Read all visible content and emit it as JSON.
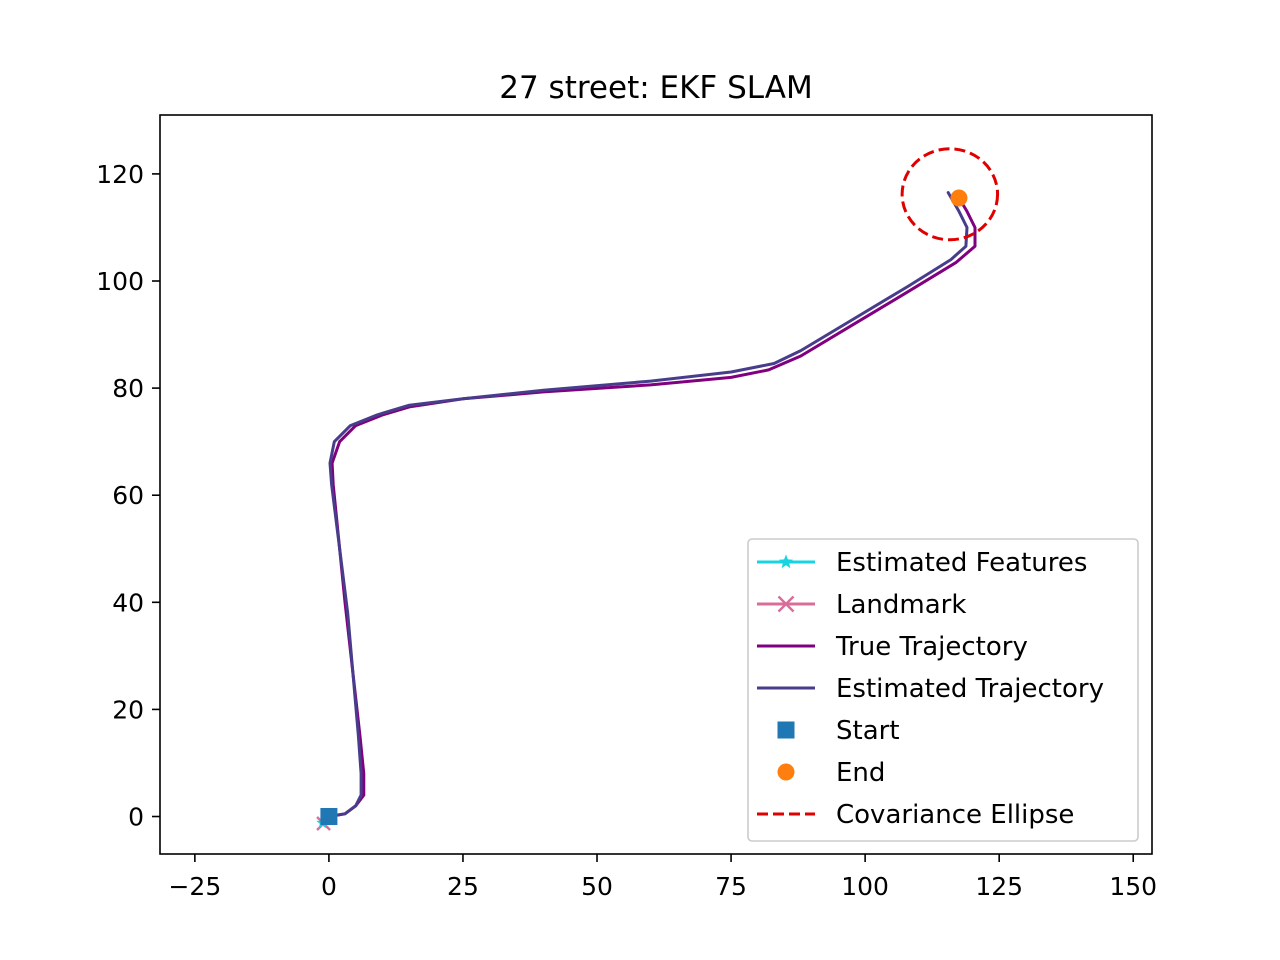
{
  "chart_data": {
    "type": "line",
    "title": "27 street: EKF SLAM",
    "xlabel": "",
    "ylabel": "",
    "xlim": [
      -31.5,
      153.5
    ],
    "ylim": [
      -7,
      131
    ],
    "xticks": [
      -25,
      0,
      25,
      50,
      75,
      100,
      125,
      150
    ],
    "xtick_labels": [
      "−25",
      "0",
      "25",
      "50",
      "75",
      "100",
      "125",
      "150"
    ],
    "yticks": [
      0,
      20,
      40,
      60,
      80,
      100,
      120
    ],
    "ytick_labels": [
      "0",
      "20",
      "40",
      "60",
      "80",
      "100",
      "120"
    ],
    "grid": false,
    "legend_position": "lower-right",
    "series": [
      {
        "name": "Estimated Features",
        "kind": "line-marker",
        "color": "#17d4e0",
        "marker": "star",
        "x": [
          -1.2
        ],
        "y": [
          -1.2
        ]
      },
      {
        "name": "Landmark",
        "kind": "line-marker",
        "color": "#d96d9a",
        "marker": "x",
        "x": [
          -1.0
        ],
        "y": [
          -1.3
        ]
      },
      {
        "name": "True Trajectory",
        "kind": "line",
        "color": "#800080",
        "x": [
          0,
          3,
          5,
          6.5,
          6.5,
          5.8,
          3.0,
          0.8,
          0.6,
          2,
          5,
          10,
          15,
          25,
          40,
          60,
          75,
          82,
          88,
          98,
          108,
          117,
          120.5,
          120.5,
          119,
          117.5
        ],
        "y": [
          0,
          0.5,
          2,
          4,
          8,
          15,
          40,
          62,
          66,
          70,
          73,
          75,
          76.5,
          78,
          79.3,
          80.6,
          82,
          83.4,
          86,
          92,
          98,
          103.5,
          106.5,
          110,
          113,
          115.5
        ]
      },
      {
        "name": "Estimated Trajectory",
        "kind": "line",
        "color": "#483d8b",
        "x": [
          0,
          3,
          5,
          6,
          6,
          5.5,
          3.5,
          0.5,
          0.2,
          1,
          4,
          9,
          15,
          25,
          40,
          60,
          75,
          83,
          88,
          98,
          108,
          116,
          118.8,
          119,
          117.5,
          115.5
        ],
        "y": [
          0,
          0.5,
          2,
          4,
          8,
          15,
          38,
          62,
          66,
          70,
          73,
          75,
          76.8,
          78,
          79.6,
          81.3,
          83,
          84.6,
          87,
          93,
          99,
          104,
          106.5,
          110,
          113,
          116.5
        ]
      },
      {
        "name": "Start",
        "kind": "scatter",
        "color": "#1f77b4",
        "marker": "square",
        "x": [
          0
        ],
        "y": [
          0
        ]
      },
      {
        "name": "End",
        "kind": "scatter",
        "color": "#ff7f0e",
        "marker": "circle",
        "x": [
          117.5
        ],
        "y": [
          115.5
        ]
      },
      {
        "name": "Covariance Ellipse",
        "kind": "ellipse",
        "color": "#e00000",
        "line_style": "dashed",
        "center": [
          115.8,
          116.2
        ],
        "radius_x": 8.9,
        "radius_y": 8.5
      }
    ]
  }
}
